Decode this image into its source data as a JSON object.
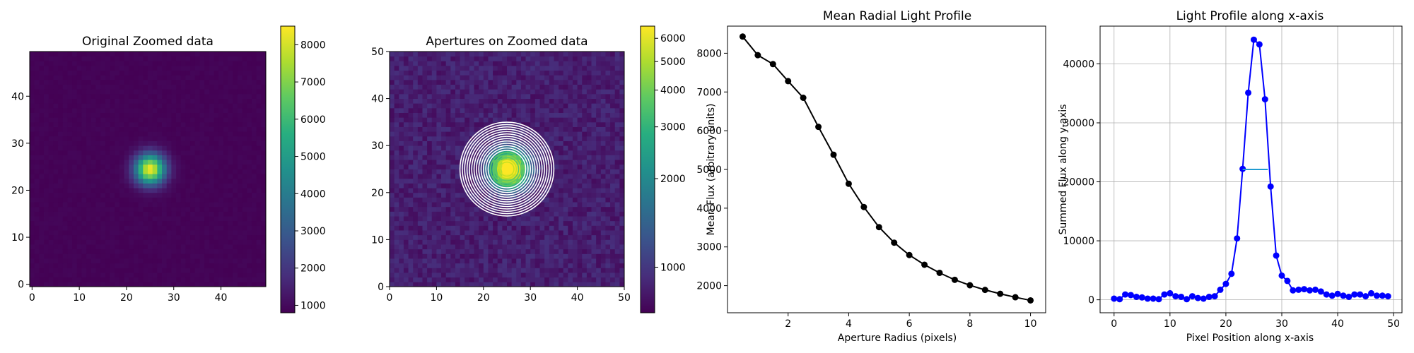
{
  "chart_data": [
    {
      "type": "heatmap",
      "title": "Original Zoomed data",
      "xlim": [
        0,
        50
      ],
      "ylim": [
        0,
        50
      ],
      "xticks": [
        "0",
        "10",
        "20",
        "30",
        "40"
      ],
      "yticks": [
        "0",
        "10",
        "20",
        "30",
        "40"
      ],
      "colormap": "viridis",
      "source": {
        "center": [
          25.5,
          25
        ],
        "sigma": 2.2,
        "peak": 8400,
        "background": 850
      },
      "colorbar": {
        "min": 800,
        "max": 8500,
        "scale": "linear",
        "ticks": [
          "1000",
          "2000",
          "3000",
          "4000",
          "5000",
          "6000",
          "7000",
          "8000"
        ]
      }
    },
    {
      "type": "heatmap",
      "title": "Apertures on Zoomed data",
      "xlim": [
        0,
        50
      ],
      "ylim": [
        0,
        50
      ],
      "xticks": [
        "0",
        "10",
        "20",
        "30",
        "40",
        "50"
      ],
      "yticks": [
        "0",
        "10",
        "20",
        "30",
        "40",
        "50"
      ],
      "colormap": "viridis",
      "colorbar": {
        "min": 700,
        "max": 6600,
        "scale": "log",
        "ticks": [
          "1000",
          "2000",
          "3000",
          "4000",
          "5000",
          "6000"
        ]
      },
      "apertures": {
        "center": [
          25,
          25
        ],
        "radii": [
          0.5,
          1,
          1.5,
          2,
          2.5,
          3,
          3.5,
          4,
          4.5,
          5,
          5.5,
          6,
          6.5,
          7,
          7.5,
          8,
          8.5,
          9,
          9.5,
          10
        ]
      }
    },
    {
      "type": "line",
      "title": "Mean Radial Light Profile",
      "xlabel": "Aperture Radius (pixels)",
      "ylabel": "Mean Flux (arbitrary units)",
      "xlim": [
        0,
        10.5
      ],
      "ylim": [
        1300,
        8700
      ],
      "xticks": [
        2,
        4,
        6,
        8,
        10
      ],
      "yticks": [
        2000,
        3000,
        4000,
        5000,
        6000,
        7000,
        8000
      ],
      "grid": false,
      "series": [
        {
          "color": "#000000",
          "x": [
            0.5,
            1,
            1.5,
            2,
            2.5,
            3,
            3.5,
            4,
            4.5,
            5,
            5.5,
            6,
            6.5,
            7,
            7.5,
            8,
            8.5,
            9,
            9.5,
            10
          ],
          "y": [
            8430,
            7950,
            7720,
            7280,
            6850,
            6100,
            5380,
            4630,
            4030,
            3510,
            3110,
            2790,
            2540,
            2330,
            2150,
            2010,
            1890,
            1790,
            1700,
            1620
          ]
        }
      ]
    },
    {
      "type": "line",
      "title": "Light Profile along x-axis",
      "xlabel": "Pixel Position along x-axis",
      "ylabel": "Summed Flux along y-axis",
      "xlim": [
        -2.5,
        51.5
      ],
      "ylim": [
        -2200,
        46400
      ],
      "xticks": [
        0,
        10,
        20,
        30,
        40,
        50
      ],
      "yticks": [
        0,
        10000,
        20000,
        30000,
        40000
      ],
      "grid": true,
      "series": [
        {
          "color": "#0000ff",
          "x": [
            0,
            1,
            2,
            3,
            4,
            5,
            6,
            7,
            8,
            9,
            10,
            11,
            12,
            13,
            14,
            15,
            16,
            17,
            18,
            19,
            20,
            21,
            22,
            23,
            24,
            25,
            26,
            27,
            28,
            29,
            30,
            31,
            32,
            33,
            34,
            35,
            36,
            37,
            38,
            39,
            40,
            41,
            42,
            43,
            44,
            45,
            46,
            47,
            48,
            49
          ],
          "y": [
            200,
            100,
            900,
            800,
            500,
            400,
            200,
            200,
            100,
            900,
            1100,
            600,
            500,
            100,
            600,
            300,
            200,
            500,
            600,
            1700,
            2700,
            4400,
            10400,
            22200,
            35100,
            44100,
            43300,
            34000,
            19200,
            7500,
            4100,
            3200,
            1600,
            1700,
            1800,
            1600,
            1700,
            1400,
            900,
            700,
            1000,
            700,
            500,
            900,
            900,
            600,
            1100,
            700,
            700,
            600
          ]
        }
      ],
      "fwhm_line": {
        "x": [
          23,
          27.5
        ],
        "y": 22100,
        "color": "#1f9bd1"
      }
    }
  ]
}
